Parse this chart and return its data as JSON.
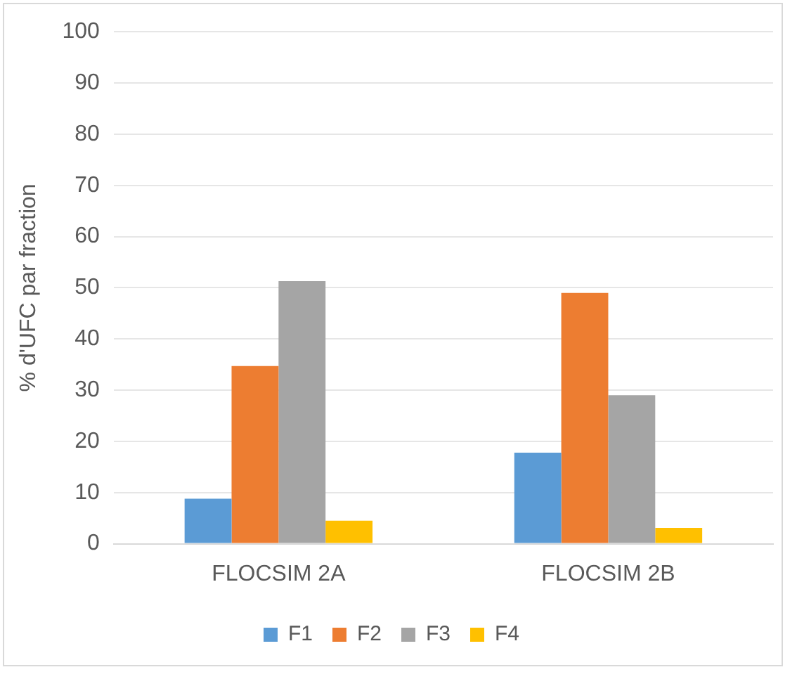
{
  "chart_data": {
    "type": "bar",
    "ylabel": "% d'UFC par fraction",
    "categories": [
      "FLOCSIM 2A",
      "FLOCSIM 2B"
    ],
    "series": [
      {
        "name": "F1",
        "color": "#5b9bd5",
        "values": [
          8.8,
          17.8
        ]
      },
      {
        "name": "F2",
        "color": "#ed7d31",
        "values": [
          34.7,
          49.0
        ]
      },
      {
        "name": "F3",
        "color": "#a5a5a5",
        "values": [
          51.3,
          29.0
        ]
      },
      {
        "name": "F4",
        "color": "#ffc000",
        "values": [
          4.5,
          3.1
        ]
      }
    ],
    "ylim": [
      0,
      100
    ],
    "yticks": [
      0,
      10,
      20,
      30,
      40,
      50,
      60,
      70,
      80,
      90,
      100
    ],
    "grid": "y",
    "legend": "bottom"
  }
}
